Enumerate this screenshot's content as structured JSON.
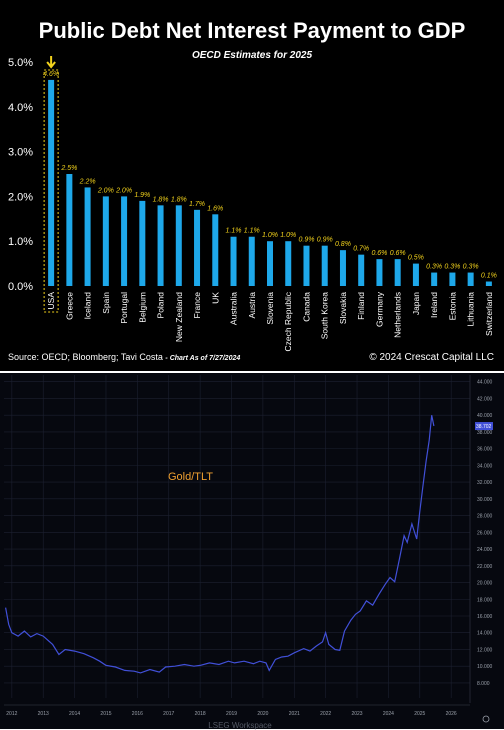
{
  "top_chart": {
    "title": "Public Debt Net Interest Payment to GDP",
    "subtitle": "OECD Estimates for 2025",
    "source": "Source: OECD; Bloomberg; Tavi Costa",
    "as_of": "- Chart As of 7/27/2024",
    "copyright": "© 2024 Crescat Capital LLC",
    "colors": {
      "background": "#000000",
      "bar": "#1ea8ea",
      "label": "#f2d21c",
      "highlight": "#f2d21c"
    }
  },
  "bottom_chart": {
    "series_label": "Gold/TLT",
    "current_value_label": "38.702",
    "footer": "LSEG Workspace",
    "colors": {
      "background": "#06080f",
      "line": "#4150d8",
      "label": "#f0a030"
    }
  },
  "chart_data": [
    {
      "type": "bar",
      "categories": [
        "USA",
        "Greece",
        "Iceland",
        "Spain",
        "Portugal",
        "Belgium",
        "Poland",
        "New Zealand",
        "France",
        "UK",
        "Australia",
        "Austria",
        "Slovenia",
        "Czech Republic",
        "Canada",
        "South Korea",
        "Slovakia",
        "Finland",
        "Germany",
        "Netherlands",
        "Japan",
        "Ireland",
        "Estonia",
        "Lithuania",
        "Switzerland"
      ],
      "values": [
        4.6,
        2.5,
        2.2,
        2.0,
        2.0,
        1.9,
        1.8,
        1.8,
        1.7,
        1.6,
        1.1,
        1.1,
        1.0,
        1.0,
        0.9,
        0.9,
        0.8,
        0.7,
        0.6,
        0.6,
        0.5,
        0.3,
        0.3,
        0.3,
        0.1
      ],
      "value_labels": [
        "4.6%",
        "2.5%",
        "2.2%",
        "2.0%",
        "2.0%",
        "1.9%",
        "1.8%",
        "1.8%",
        "1.7%",
        "1.6%",
        "1.1%",
        "1.1%",
        "1.0%",
        "1.0%",
        "0.9%",
        "0.9%",
        "0.8%",
        "0.7%",
        "0.6%",
        "0.6%",
        "0.5%",
        "0.3%",
        "0.3%",
        "0.3%",
        "0.1%"
      ],
      "title": "Public Debt Net Interest Payment to GDP",
      "subtitle": "OECD Estimates for 2025",
      "ylim": [
        0,
        5
      ],
      "yticks": [
        "0.0%",
        "1.0%",
        "2.0%",
        "3.0%",
        "4.0%",
        "5.0%"
      ],
      "highlight": "USA"
    },
    {
      "type": "line",
      "series": [
        {
          "name": "Gold/TLT",
          "points": [
            [
              2011.8,
              17.0
            ],
            [
              2011.9,
              15.0
            ],
            [
              2012.0,
              14.0
            ],
            [
              2012.2,
              13.6
            ],
            [
              2012.4,
              14.2
            ],
            [
              2012.6,
              13.5
            ],
            [
              2012.8,
              13.9
            ],
            [
              2013.0,
              13.6
            ],
            [
              2013.3,
              12.6
            ],
            [
              2013.5,
              11.4
            ],
            [
              2013.7,
              12.0
            ],
            [
              2014.0,
              11.8
            ],
            [
              2014.3,
              11.5
            ],
            [
              2014.6,
              11.0
            ],
            [
              2014.8,
              10.6
            ],
            [
              2015.0,
              10.1
            ],
            [
              2015.3,
              9.9
            ],
            [
              2015.6,
              9.5
            ],
            [
              2015.9,
              9.4
            ],
            [
              2016.1,
              9.2
            ],
            [
              2016.4,
              9.6
            ],
            [
              2016.7,
              9.3
            ],
            [
              2016.9,
              9.9
            ],
            [
              2017.2,
              10.0
            ],
            [
              2017.5,
              10.2
            ],
            [
              2017.8,
              10.0
            ],
            [
              2018.0,
              10.1
            ],
            [
              2018.3,
              10.4
            ],
            [
              2018.6,
              10.2
            ],
            [
              2018.9,
              10.6
            ],
            [
              2019.1,
              10.4
            ],
            [
              2019.4,
              10.6
            ],
            [
              2019.7,
              10.3
            ],
            [
              2019.9,
              10.6
            ],
            [
              2020.1,
              10.4
            ],
            [
              2020.2,
              9.5
            ],
            [
              2020.4,
              10.8
            ],
            [
              2020.6,
              11.1
            ],
            [
              2020.8,
              11.2
            ],
            [
              2021.0,
              11.6
            ],
            [
              2021.3,
              12.1
            ],
            [
              2021.5,
              11.8
            ],
            [
              2021.7,
              12.4
            ],
            [
              2021.9,
              12.9
            ],
            [
              2022.0,
              14.0
            ],
            [
              2022.1,
              12.6
            ],
            [
              2022.3,
              12.0
            ],
            [
              2022.45,
              11.9
            ],
            [
              2022.6,
              14.2
            ],
            [
              2022.8,
              15.5
            ],
            [
              2022.95,
              16.2
            ],
            [
              2023.1,
              16.6
            ],
            [
              2023.3,
              17.8
            ],
            [
              2023.5,
              17.3
            ],
            [
              2023.7,
              18.6
            ],
            [
              2023.9,
              19.8
            ],
            [
              2024.05,
              20.6
            ],
            [
              2024.2,
              20.1
            ],
            [
              2024.35,
              22.8
            ],
            [
              2024.5,
              25.6
            ],
            [
              2024.6,
              24.8
            ],
            [
              2024.75,
              27.0
            ],
            [
              2024.9,
              25.2
            ],
            [
              2025.0,
              28.5
            ],
            [
              2025.1,
              31.5
            ],
            [
              2025.2,
              34.5
            ],
            [
              2025.3,
              37.0
            ],
            [
              2025.38,
              40.0
            ],
            [
              2025.45,
              38.7
            ]
          ]
        }
      ],
      "xlim": [
        2011.75,
        2026.6
      ],
      "ylim": [
        6.2,
        44.8
      ],
      "xticks": [
        "2012",
        "2013",
        "2014",
        "2015",
        "2016",
        "2017",
        "2018",
        "2019",
        "2020",
        "2021",
        "2022",
        "2023",
        "2024",
        "2025",
        "2026"
      ],
      "yticks": [
        "8.000",
        "10.000",
        "12.000",
        "14.000",
        "16.000",
        "18.000",
        "20.000",
        "22.000",
        "24.000",
        "26.000",
        "28.000",
        "30.000",
        "32.000",
        "34.000",
        "36.000",
        "38.000",
        "40.000",
        "42.000",
        "44.000"
      ]
    }
  ]
}
